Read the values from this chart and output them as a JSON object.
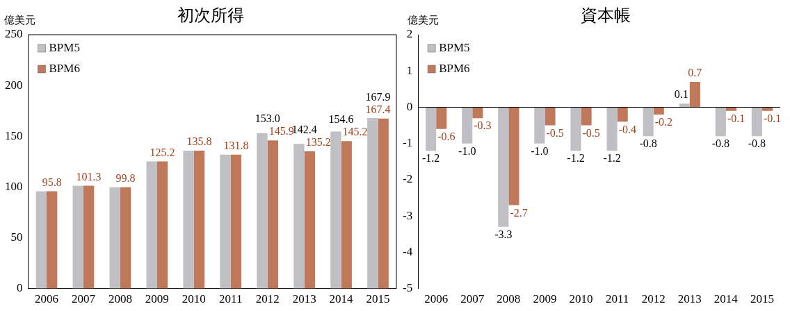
{
  "chart_data": [
    {
      "type": "bar",
      "title": "初次所得",
      "ylabel": "億美元",
      "categories": [
        "2006",
        "2007",
        "2008",
        "2009",
        "2010",
        "2011",
        "2012",
        "2013",
        "2014",
        "2015"
      ],
      "series": [
        {
          "name": "BPM5",
          "color": "#bfbfc4",
          "values": [
            95.8,
            101.3,
            99.8,
            125.2,
            135.8,
            131.8,
            153.0,
            142.4,
            154.6,
            167.9
          ],
          "value_labels": [
            null,
            null,
            null,
            null,
            null,
            null,
            "153.0",
            "142.4",
            "154.6",
            "167.9"
          ]
        },
        {
          "name": "BPM6",
          "color": "#c0785a",
          "values": [
            95.8,
            101.3,
            99.8,
            125.2,
            135.8,
            131.8,
            145.9,
            135.2,
            145.2,
            167.4
          ],
          "value_labels": [
            "95.8",
            "101.3",
            "99.8",
            "125.2",
            "135.8",
            "131.8",
            "145.9",
            "135.2",
            "145.2",
            "167.4"
          ]
        }
      ],
      "ylim": [
        0,
        250
      ],
      "yticks": [
        0,
        50,
        100,
        150,
        200,
        250
      ],
      "grid": false,
      "legend": "top left"
    },
    {
      "type": "bar",
      "title": "資本帳",
      "ylabel": "億美元",
      "categories": [
        "2006",
        "2007",
        "2008",
        "2009",
        "2010",
        "2011",
        "2012",
        "2013",
        "2014",
        "2015"
      ],
      "series": [
        {
          "name": "BPM5",
          "color": "#bfbfc4",
          "values": [
            -1.2,
            -1.0,
            -3.3,
            -1.0,
            -1.2,
            -1.2,
            -0.8,
            0.1,
            -0.8,
            -0.8
          ],
          "value_labels": [
            "-1.2",
            "-1.0",
            "-3.3",
            "-1.0",
            "-1.2",
            "-1.2",
            "-0.8",
            "0.1",
            "-0.8",
            "-0.8"
          ]
        },
        {
          "name": "BPM6",
          "color": "#c0785a",
          "values": [
            -0.6,
            -0.3,
            -2.7,
            -0.5,
            -0.5,
            -0.4,
            -0.2,
            0.7,
            -0.1,
            -0.1
          ],
          "value_labels": [
            "-0.6",
            "-0.3",
            "-2.7",
            "-0.5",
            "-0.5",
            "-0.4",
            "-0.2",
            "0.7",
            "-0.1",
            "-0.1"
          ]
        }
      ],
      "ylim": [
        -5,
        2
      ],
      "yticks": [
        -5,
        -4,
        -3,
        -2,
        -1,
        0,
        1,
        2
      ],
      "grid": false,
      "legend": "top left",
      "ref_lines": [
        {
          "axis": "y",
          "value": 0,
          "color": "#000000"
        }
      ]
    }
  ]
}
